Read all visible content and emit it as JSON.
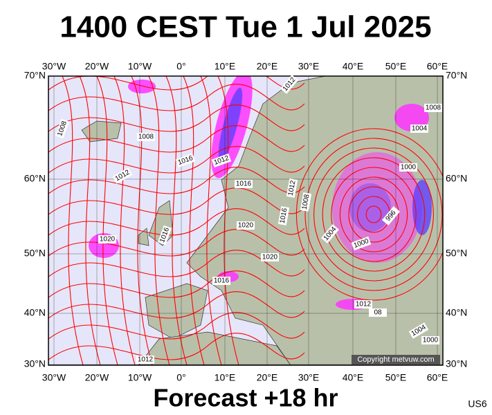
{
  "header": {
    "title": "1400 CEST Tue 1 Jul 2025"
  },
  "map": {
    "lon_labels": [
      "30°W",
      "20°W",
      "10°W",
      "0°",
      "10°E",
      "20°E",
      "30°E",
      "40°E",
      "50°E",
      "60°E"
    ],
    "lat_labels": [
      "70°N",
      "60°N",
      "50°N",
      "40°N",
      "30°N"
    ],
    "isobar_labels": [
      "1012",
      "1008",
      "1004",
      "1008",
      "1008",
      "1016",
      "1012",
      "1000",
      "1012",
      "1016",
      "1012",
      "1008",
      "1016",
      "996",
      "1020",
      "1016",
      "1020",
      "1004",
      "1000",
      "1020",
      "1016",
      "1012",
      "08",
      "1004",
      "1000",
      "1012"
    ],
    "copyright": "Copyright metvuw.com"
  },
  "footer": {
    "forecast": "Forecast +18 hr",
    "model": "US6"
  }
}
